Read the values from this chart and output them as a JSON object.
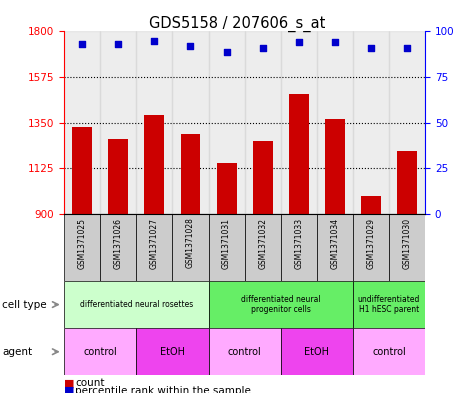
{
  "title": "GDS5158 / 207606_s_at",
  "samples": [
    "GSM1371025",
    "GSM1371026",
    "GSM1371027",
    "GSM1371028",
    "GSM1371031",
    "GSM1371032",
    "GSM1371033",
    "GSM1371034",
    "GSM1371029",
    "GSM1371030"
  ],
  "counts": [
    1330,
    1270,
    1390,
    1295,
    1150,
    1260,
    1490,
    1370,
    990,
    1210
  ],
  "percentile_ranks": [
    93,
    93,
    95,
    92,
    89,
    91,
    94,
    94,
    91,
    91
  ],
  "ylim_left": [
    900,
    1800
  ],
  "yticks_left": [
    900,
    1125,
    1350,
    1575,
    1800
  ],
  "yticks_right": [
    0,
    25,
    50,
    75,
    100
  ],
  "bar_color": "#cc0000",
  "dot_color": "#0000cc",
  "cell_type_groups": [
    {
      "label": "differentiated neural rosettes",
      "start": 0,
      "end": 3,
      "color": "#ccffcc"
    },
    {
      "label": "differentiated neural\nprogenitor cells",
      "start": 4,
      "end": 7,
      "color": "#66ee66"
    },
    {
      "label": "undifferentiated\nH1 hESC parent",
      "start": 8,
      "end": 9,
      "color": "#66ee66"
    }
  ],
  "agent_groups": [
    {
      "label": "control",
      "start": 0,
      "end": 1,
      "color": "#ffaaff"
    },
    {
      "label": "EtOH",
      "start": 2,
      "end": 3,
      "color": "#ee44ee"
    },
    {
      "label": "control",
      "start": 4,
      "end": 5,
      "color": "#ffaaff"
    },
    {
      "label": "EtOH",
      "start": 6,
      "end": 7,
      "color": "#ee44ee"
    },
    {
      "label": "control",
      "start": 8,
      "end": 9,
      "color": "#ffaaff"
    }
  ],
  "sample_bg_color": "#cccccc",
  "plot_bg_color": "#ffffff"
}
